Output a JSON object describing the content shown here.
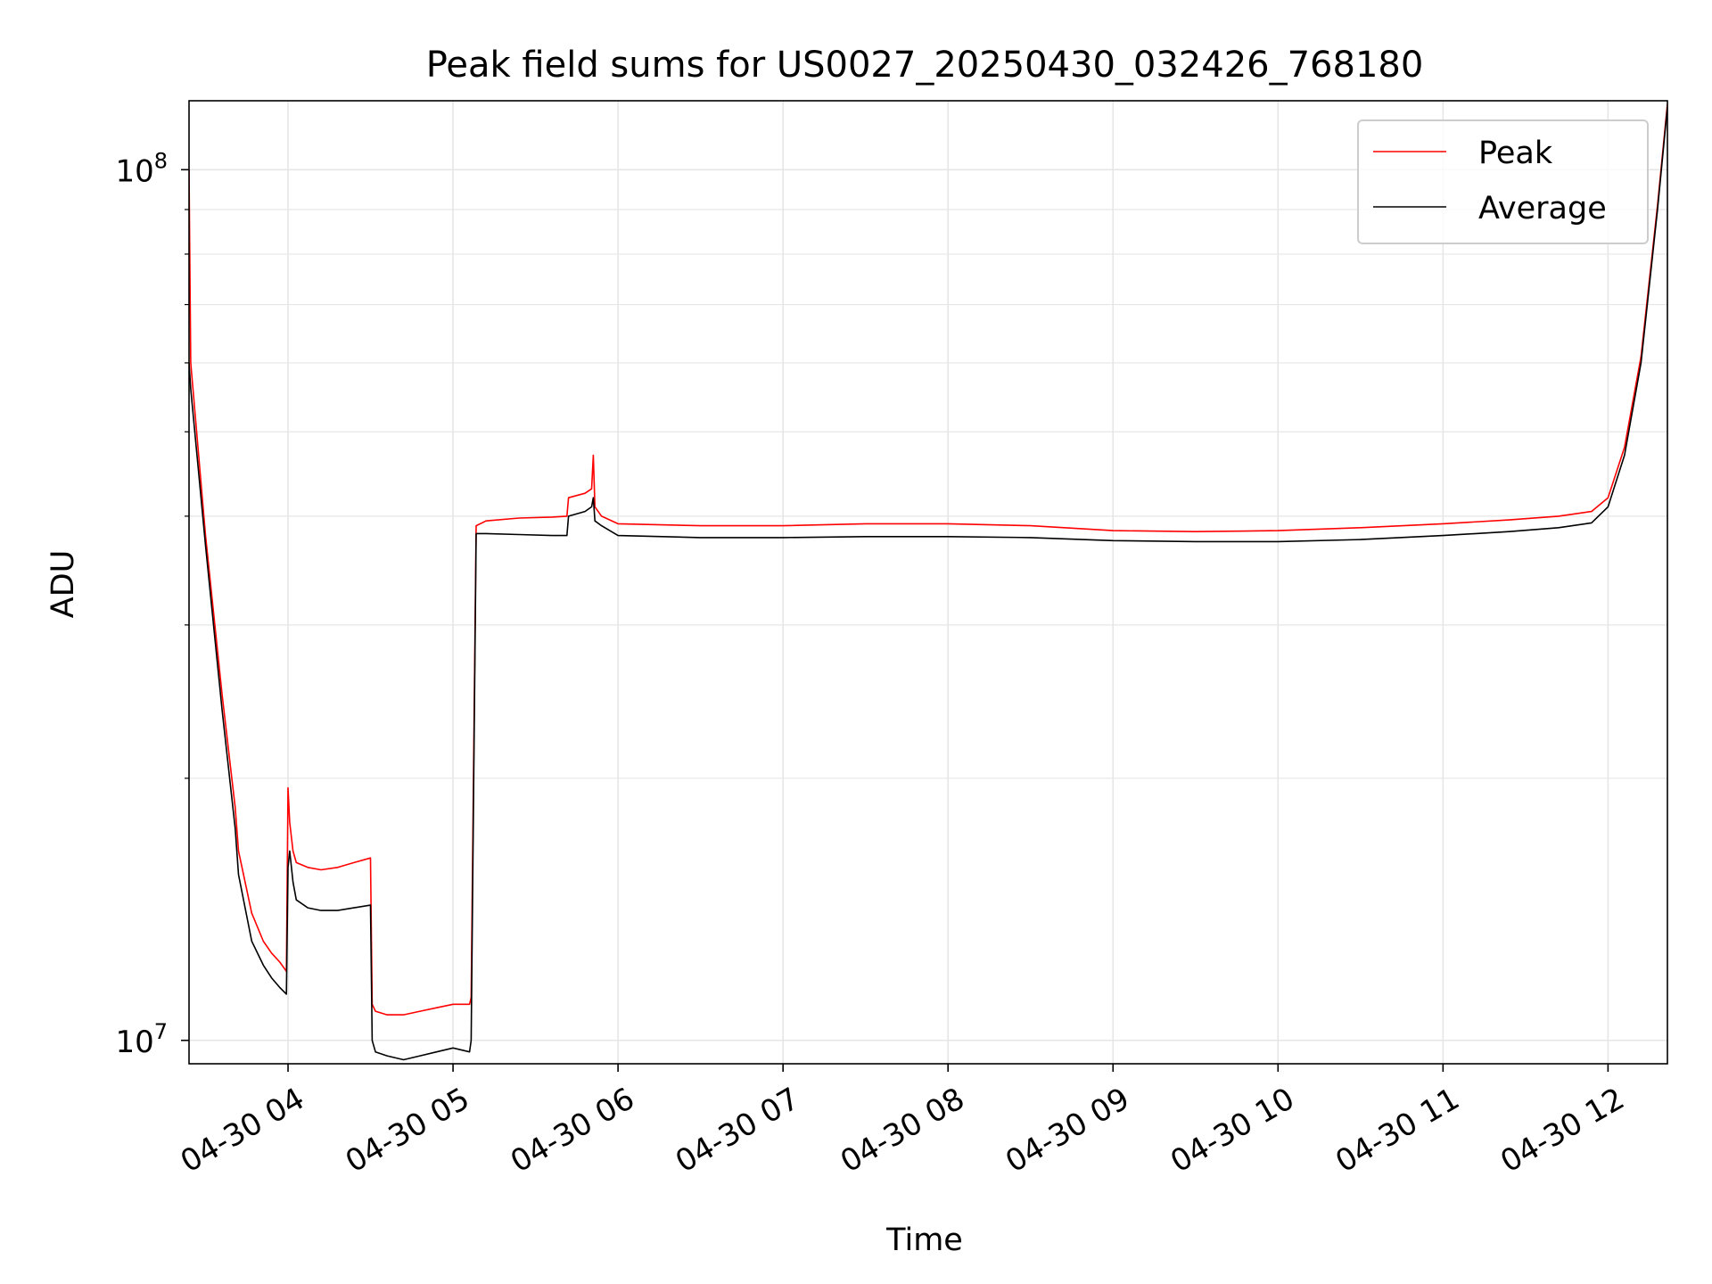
{
  "chart_data": {
    "type": "line",
    "title": "Peak field sums for US0027_20250430_032426_768180",
    "xlabel": "Time",
    "ylabel": "ADU",
    "x_unit": "hours (2025-04-30)",
    "xlim": [
      3.4,
      12.36
    ],
    "ylim": [
      9400000,
      120000000
    ],
    "yscale": "log",
    "grid": true,
    "legend_position": "top-right",
    "x_ticks": [
      {
        "value": 4,
        "label": "04-30 04"
      },
      {
        "value": 5,
        "label": "04-30 05"
      },
      {
        "value": 6,
        "label": "04-30 06"
      },
      {
        "value": 7,
        "label": "04-30 07"
      },
      {
        "value": 8,
        "label": "04-30 08"
      },
      {
        "value": 9,
        "label": "04-30 09"
      },
      {
        "value": 10,
        "label": "04-30 10"
      },
      {
        "value": 11,
        "label": "04-30 11"
      },
      {
        "value": 12,
        "label": "04-30 12"
      }
    ],
    "y_ticks": [
      {
        "value": 10000000,
        "base": "10",
        "exp": "7"
      },
      {
        "value": 100000000,
        "base": "10",
        "exp": "8"
      }
    ],
    "y_minor_ticks": [
      20000000,
      30000000,
      40000000,
      50000000,
      60000000,
      70000000,
      80000000,
      90000000
    ],
    "series": [
      {
        "name": "Average",
        "color": "#000000",
        "x": [
          3.4,
          3.41,
          3.5,
          3.6,
          3.68,
          3.7,
          3.78,
          3.85,
          3.9,
          3.95,
          3.99,
          4.0,
          4.01,
          4.03,
          4.05,
          4.12,
          4.2,
          4.3,
          4.4,
          4.5,
          4.51,
          4.53,
          4.6,
          4.7,
          4.8,
          4.9,
          5.0,
          5.1,
          5.11,
          5.14,
          5.2,
          5.4,
          5.6,
          5.69,
          5.7,
          5.8,
          5.84,
          5.85,
          5.86,
          5.9,
          6.0,
          6.5,
          7.0,
          7.5,
          8.0,
          8.5,
          9.0,
          9.5,
          10.0,
          10.5,
          11.0,
          11.4,
          11.7,
          11.9,
          12.0,
          12.1,
          12.2,
          12.3,
          12.36
        ],
        "y": [
          60000000,
          56000000,
          37000000,
          24000000,
          17500000,
          15500000,
          13000000,
          12200000,
          11800000,
          11500000,
          11300000,
          15800000,
          16500000,
          15200000,
          14500000,
          14200000,
          14100000,
          14100000,
          14200000,
          14300000,
          10000000,
          9700000,
          9600000,
          9500000,
          9600000,
          9700000,
          9800000,
          9700000,
          10000000,
          38200000,
          38200000,
          38100000,
          38000000,
          38000000,
          40000000,
          40500000,
          41000000,
          42000000,
          39500000,
          39000000,
          38000000,
          37800000,
          37800000,
          37900000,
          37900000,
          37800000,
          37500000,
          37400000,
          37400000,
          37600000,
          38000000,
          38400000,
          38800000,
          39300000,
          41000000,
          47000000,
          60000000,
          90000000,
          118000000
        ]
      },
      {
        "name": "Peak",
        "color": "#ff0000",
        "x": [
          3.4,
          3.41,
          3.5,
          3.6,
          3.68,
          3.7,
          3.78,
          3.85,
          3.9,
          3.95,
          3.99,
          4.0,
          4.01,
          4.03,
          4.05,
          4.12,
          4.2,
          4.3,
          4.4,
          4.5,
          4.51,
          4.53,
          4.6,
          4.7,
          4.8,
          4.9,
          5.0,
          5.1,
          5.11,
          5.14,
          5.2,
          5.4,
          5.6,
          5.69,
          5.7,
          5.8,
          5.84,
          5.85,
          5.86,
          5.9,
          6.0,
          6.5,
          7.0,
          7.5,
          8.0,
          8.5,
          9.0,
          9.5,
          10.0,
          10.5,
          11.0,
          11.4,
          11.7,
          11.9,
          12.0,
          12.1,
          12.2,
          12.3,
          12.36
        ],
        "y": [
          100000000,
          60000000,
          38000000,
          25000000,
          18500000,
          16500000,
          14000000,
          13000000,
          12600000,
          12300000,
          12000000,
          19500000,
          17800000,
          16500000,
          16000000,
          15800000,
          15700000,
          15800000,
          16000000,
          16200000,
          11000000,
          10800000,
          10700000,
          10700000,
          10800000,
          10900000,
          11000000,
          11000000,
          11200000,
          39000000,
          39500000,
          39800000,
          39900000,
          40000000,
          42000000,
          42500000,
          43000000,
          47000000,
          41000000,
          40000000,
          39200000,
          39000000,
          39000000,
          39200000,
          39200000,
          39000000,
          38500000,
          38400000,
          38500000,
          38800000,
          39200000,
          39600000,
          40000000,
          40500000,
          42000000,
          48000000,
          61000000,
          91000000,
          119000000
        ]
      }
    ],
    "legend": [
      {
        "name": "Peak",
        "color": "#ff0000"
      },
      {
        "name": "Average",
        "color": "#000000"
      }
    ]
  }
}
